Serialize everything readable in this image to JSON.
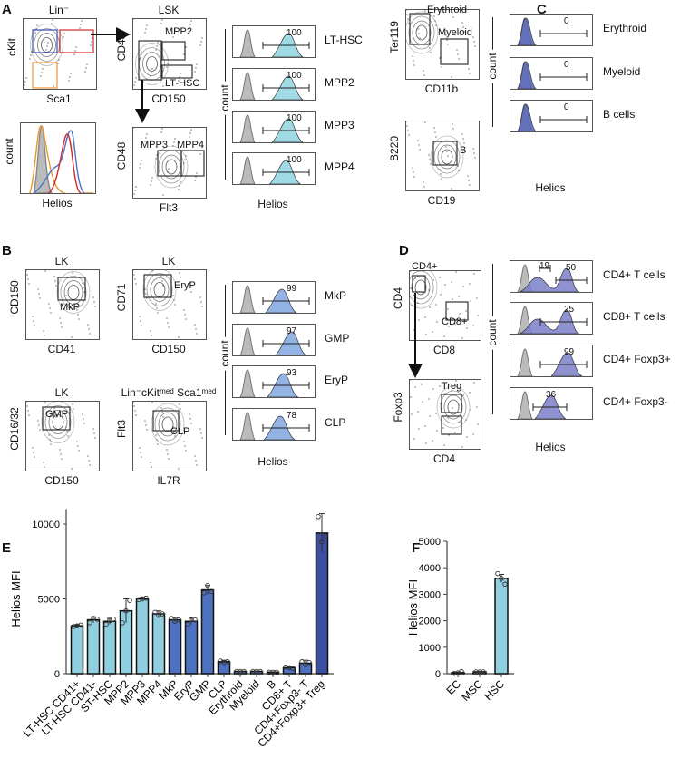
{
  "panel_labels": {
    "a": "A",
    "b": "B",
    "c": "C",
    "d": "D",
    "e": "E",
    "f": "F"
  },
  "a": {
    "plots": [
      {
        "title": "Lin⁻",
        "xlabel": "Sca1",
        "ylabel": "cKit",
        "gates": []
      },
      {
        "title": "LSK",
        "xlabel": "CD150",
        "ylabel": "CD48",
        "gates": [
          "MPP2",
          "LT-HSC"
        ]
      },
      {
        "title": "",
        "xlabel": "Helios",
        "ylabel": "count",
        "gates": []
      },
      {
        "title": "",
        "xlabel": "Flt3",
        "ylabel": "CD48",
        "gates": [
          "MPP3",
          "MPP4"
        ]
      }
    ],
    "hist_stack": {
      "xlabel": "Helios",
      "ylabel": "count",
      "color": "#8fd3e0",
      "rows": [
        {
          "value": "100",
          "label": "LT-HSC"
        },
        {
          "value": "100",
          "label": "MPP2"
        },
        {
          "value": "100",
          "label": "MPP3"
        },
        {
          "value": "100",
          "label": "MPP4"
        }
      ]
    }
  },
  "b": {
    "plots": [
      {
        "title": "LK",
        "xlabel": "CD41",
        "ylabel": "CD150",
        "gates": [
          "MkP"
        ]
      },
      {
        "title": "LK",
        "xlabel": "CD150",
        "ylabel": "CD71",
        "gates": [
          "EryP"
        ]
      },
      {
        "title": "LK",
        "xlabel": "CD150",
        "ylabel": "CD16/32",
        "gates": [
          "GMP"
        ]
      },
      {
        "title": "Lin⁻cKitᵐᵉᵈ Sca1ᵐᵉᵈ",
        "xlabel": "IL7R",
        "ylabel": "Flt3",
        "gates": [
          "CLP"
        ]
      }
    ],
    "hist_stack": {
      "xlabel": "Helios",
      "ylabel": "count",
      "color": "#7fa6df",
      "rows": [
        {
          "value": "99",
          "label": "MkP"
        },
        {
          "value": "97",
          "label": "GMP"
        },
        {
          "value": "93",
          "label": "EryP"
        },
        {
          "value": "78",
          "label": "CLP"
        }
      ]
    }
  },
  "c": {
    "plots": [
      {
        "title": "",
        "xlabel": "CD11b",
        "ylabel": "Ter119",
        "gates": [
          "Erythroid",
          "Myeloid"
        ]
      },
      {
        "title": "",
        "xlabel": "CD19",
        "ylabel": "B220",
        "gates": [
          "B"
        ]
      }
    ],
    "hist_stack": {
      "xlabel": "Helios",
      "ylabel": "count",
      "color": "#5563b8",
      "rows": [
        {
          "value": "0",
          "label": "Erythroid"
        },
        {
          "value": "0",
          "label": "Myeloid"
        },
        {
          "value": "0",
          "label": "B cells"
        }
      ]
    }
  },
  "d": {
    "plots": [
      {
        "title": "",
        "xlabel": "CD8",
        "ylabel": "CD4",
        "gates": [
          "CD4+",
          "CD8+"
        ]
      },
      {
        "title": "",
        "xlabel": "CD4",
        "ylabel": "Foxp3",
        "gates": [
          "Treg"
        ]
      }
    ],
    "hist_stack": {
      "xlabel": "Helios",
      "ylabel": "count",
      "color": "#7b7fc9",
      "rows": [
        {
          "value": "50",
          "value2": "19",
          "label": "CD4+ T cells"
        },
        {
          "value": "25",
          "label": "CD8+ T cells"
        },
        {
          "value": "99",
          "label": "CD4+ Foxp3+"
        },
        {
          "value": "36",
          "label": "CD4+ Foxp3-"
        }
      ]
    }
  },
  "chart_data": [
    {
      "panel": "E",
      "type": "bar",
      "title": "",
      "xlabel": "",
      "ylabel": "Helios MFI",
      "ylim": [
        0,
        11000
      ],
      "yticks": [
        "0",
        "5000",
        "10000"
      ],
      "ytick_values": [
        0,
        5000,
        10000
      ],
      "categories": [
        "LT-HSC CD41+",
        "LT-HSC CD41-",
        "ST-HSC",
        "MPP2",
        "MPP3",
        "MPP4",
        "MkP",
        "EryP",
        "GMP",
        "CLP",
        "Erythroid",
        "Myeloid",
        "B",
        "CD8+ T",
        "CD4+Foxp3- T",
        "CD4+Foxp3+ Treg"
      ],
      "values": [
        3200,
        3600,
        3500,
        4200,
        5000,
        4000,
        3600,
        3500,
        5600,
        800,
        150,
        150,
        100,
        400,
        700,
        9400
      ],
      "errors": [
        80,
        200,
        200,
        800,
        100,
        200,
        150,
        200,
        300,
        100,
        30,
        30,
        30,
        80,
        200,
        1300
      ],
      "points": [
        [
          3150,
          3200,
          3250
        ],
        [
          3400,
          3700,
          3650
        ],
        [
          3300,
          3550,
          3650
        ],
        [
          3400,
          4200,
          4900
        ],
        [
          4950,
          5000,
          5050
        ],
        [
          4100,
          3900,
          4000
        ],
        [
          3700,
          3500,
          3600
        ],
        [
          3300,
          3600,
          3600
        ],
        [
          5400,
          5900,
          5500
        ],
        [
          850,
          750,
          800
        ],
        [
          150,
          150,
          150
        ],
        [
          150,
          150,
          150
        ],
        [
          100,
          100,
          100
        ],
        [
          450,
          400,
          350
        ],
        [
          800,
          600,
          750
        ],
        [
          10500,
          8800,
          9200
        ]
      ],
      "colors": [
        "#8fcfdf",
        "#8fcfdf",
        "#8fcfdf",
        "#8fcfdf",
        "#8fcfdf",
        "#8fcfdf",
        "#4f72c0",
        "#4f72c0",
        "#4f72c0",
        "#4f72c0",
        "#4f72c0",
        "#4f72c0",
        "#4f72c0",
        "#4f72c0",
        "#4f72c0",
        "#3c4fa3"
      ]
    },
    {
      "panel": "F",
      "type": "bar",
      "title": "",
      "xlabel": "",
      "ylabel": "Helios MFI",
      "ylim": [
        0,
        5000
      ],
      "yticks": [
        "0",
        "1000",
        "2000",
        "3000",
        "4000",
        "5000"
      ],
      "ytick_values": [
        0,
        1000,
        2000,
        3000,
        4000,
        5000
      ],
      "categories": [
        "EC",
        "MSC",
        "HSC"
      ],
      "values": [
        40,
        70,
        3600
      ],
      "errors": [
        20,
        20,
        150
      ],
      "points": [
        [
          10,
          30,
          80
        ],
        [
          70,
          70,
          70
        ],
        [
          3780,
          3600,
          3380
        ]
      ],
      "colors": [
        "#b03030",
        "#4b9b4b",
        "#8fcfdf"
      ]
    }
  ]
}
